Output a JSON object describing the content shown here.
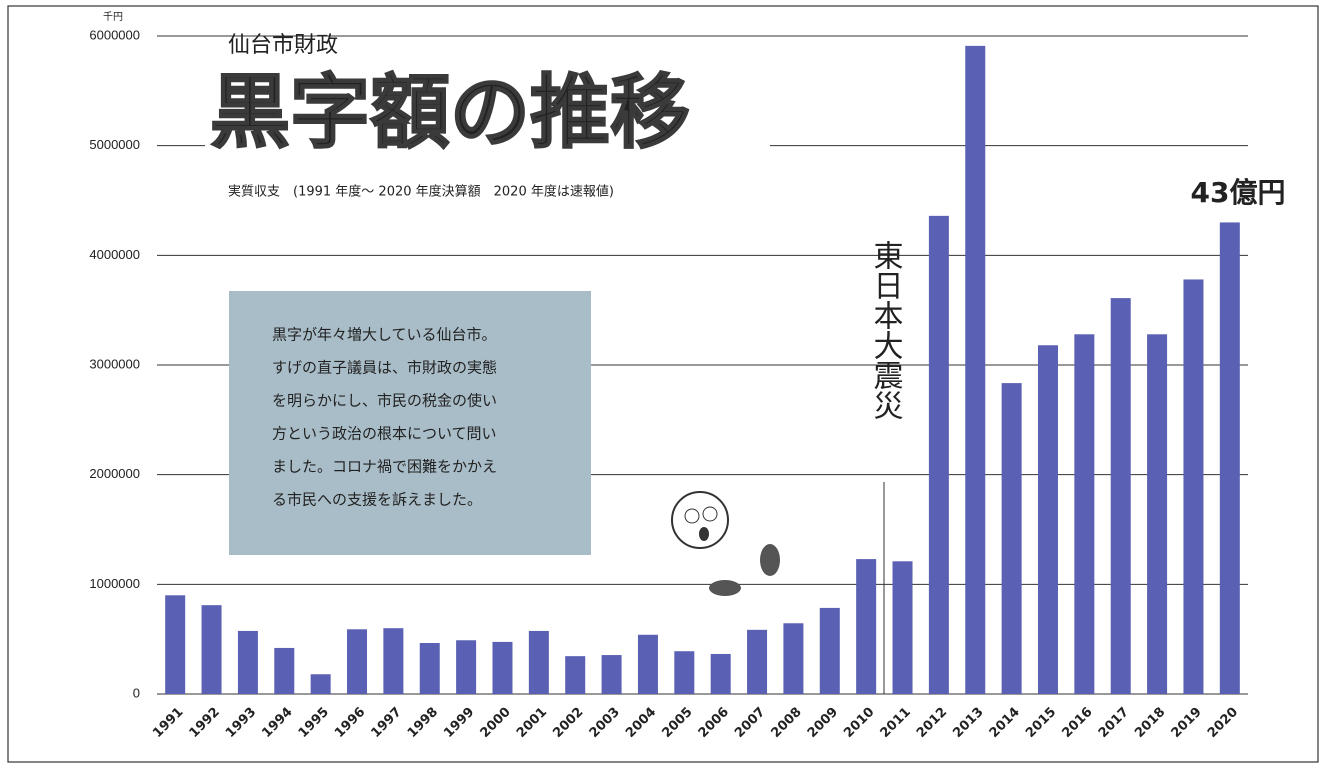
{
  "chart_data": {
    "type": "bar",
    "title": "黒字額の推移",
    "supertitle": "仙台市財政",
    "subtitle": "実質収支　(1991 年度～ 2020 年度決算額　2020 年度は速報値)",
    "y_unit": "千円",
    "categories": [
      "1991",
      "1992",
      "1993",
      "1994",
      "1995",
      "1996",
      "1997",
      "1998",
      "1999",
      "2000",
      "2001",
      "2002",
      "2003",
      "2004",
      "2005",
      "2006",
      "2007",
      "2008",
      "2009",
      "2010",
      "2011",
      "2012",
      "2013",
      "2014",
      "2015",
      "2016",
      "2017",
      "2018",
      "2019",
      "2020"
    ],
    "values": [
      900000,
      810000,
      575000,
      420000,
      180000,
      590000,
      600000,
      465000,
      490000,
      475000,
      575000,
      345000,
      355000,
      540000,
      390000,
      365000,
      585000,
      645000,
      785000,
      1230000,
      1210000,
      4360000,
      5910000,
      2835000,
      3180000,
      3280000,
      3610000,
      3280000,
      3780000,
      4300000
    ],
    "color": "#5a60b3",
    "ylim": [
      0,
      6000000
    ],
    "yticks": [
      0,
      1000000,
      2000000,
      3000000,
      4000000,
      5000000,
      6000000
    ],
    "grid": true,
    "annotations": {
      "last_value": "43億円",
      "event": "東日本大震災"
    },
    "note": [
      "黒字が年々増大している仙台市。",
      "すげの直子議員は、市財政の実態",
      "を明らかにし、市民の税金の使い",
      "方という政治の根本について問い",
      "ました。コロナ禍で困難をかかえ",
      "る市民への支援を訴えました。"
    ]
  }
}
